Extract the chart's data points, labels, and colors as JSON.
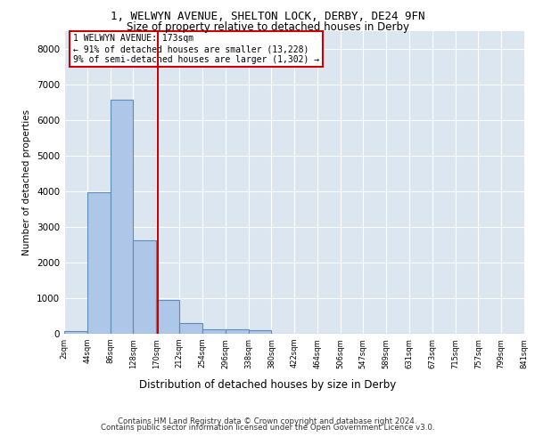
{
  "title_line1": "1, WELWYN AVENUE, SHELTON LOCK, DERBY, DE24 9FN",
  "title_line2": "Size of property relative to detached houses in Derby",
  "xlabel": "Distribution of detached houses by size in Derby",
  "ylabel": "Number of detached properties",
  "footer_line1": "Contains HM Land Registry data © Crown copyright and database right 2024.",
  "footer_line2": "Contains public sector information licensed under the Open Government Licence v3.0.",
  "annotation_line1": "1 WELWYN AVENUE: 173sqm",
  "annotation_line2": "← 91% of detached houses are smaller (13,228)",
  "annotation_line3": "9% of semi-detached houses are larger (1,302) →",
  "property_size": 173,
  "bin_edges": [
    2,
    44,
    86,
    128,
    170,
    212,
    254,
    296,
    338,
    380,
    422,
    464,
    506,
    547,
    589,
    631,
    673,
    715,
    757,
    799,
    841
  ],
  "bar_heights": [
    70,
    3980,
    6580,
    2620,
    960,
    310,
    130,
    120,
    90,
    0,
    0,
    0,
    0,
    0,
    0,
    0,
    0,
    0,
    0,
    0
  ],
  "bar_color": "#aec6e8",
  "bar_edge_color": "#5b8db8",
  "vline_color": "#cc0000",
  "vline_x": 173,
  "annotation_box_color": "#cc0000",
  "background_color": "#dce6f1",
  "ylim": [
    0,
    8500
  ],
  "yticks": [
    0,
    1000,
    2000,
    3000,
    4000,
    5000,
    6000,
    7000,
    8000
  ]
}
